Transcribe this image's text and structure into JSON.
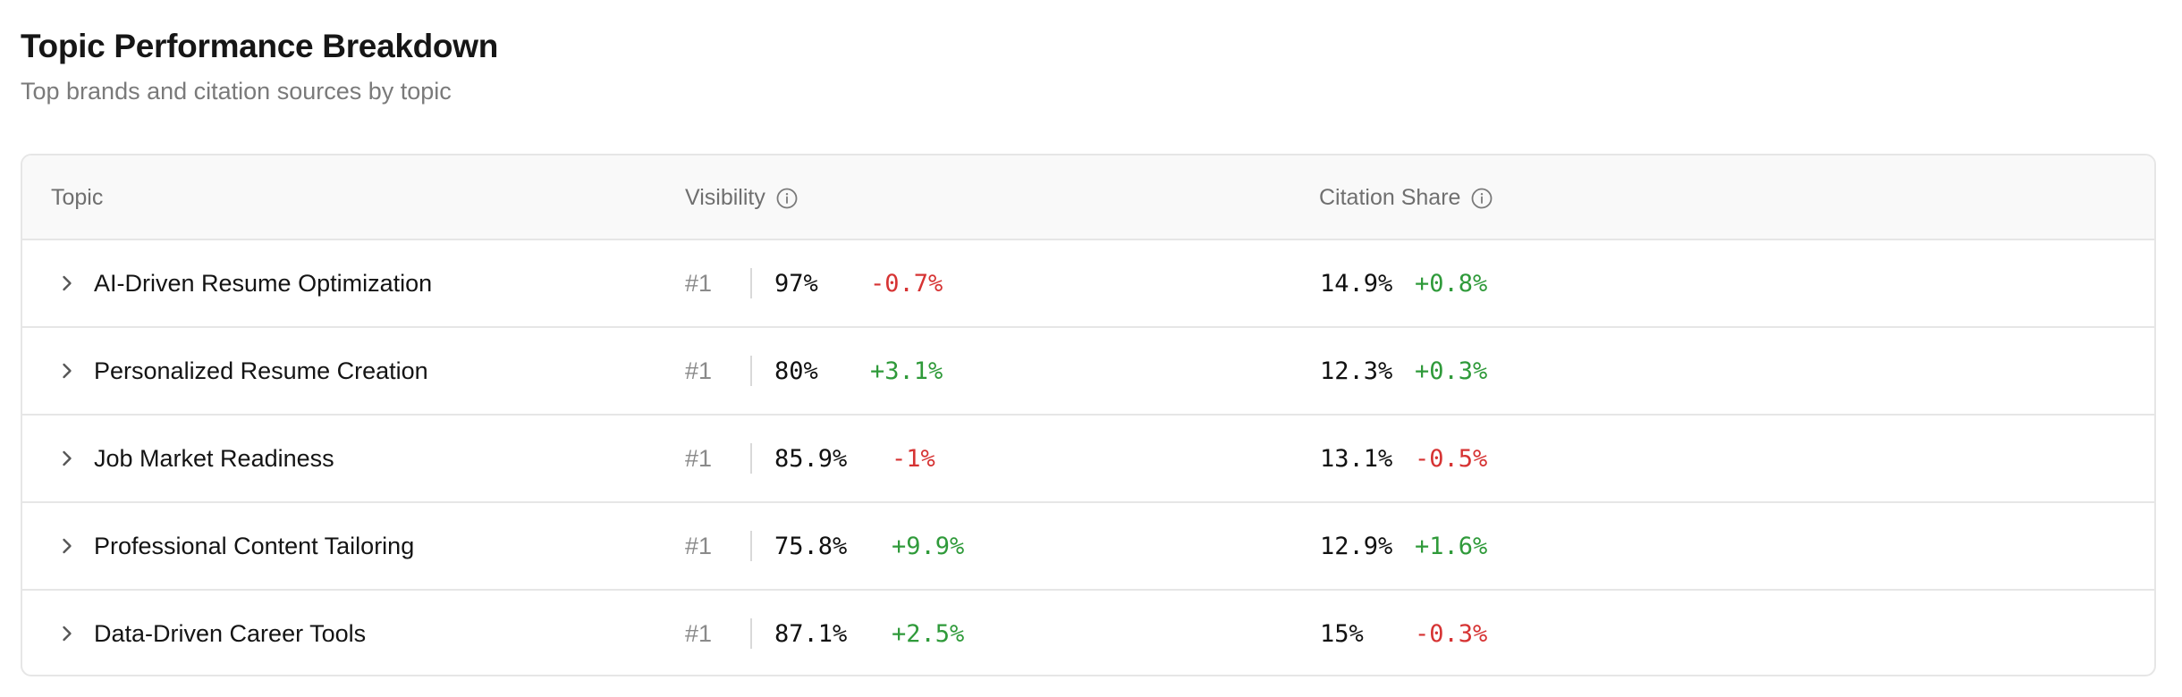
{
  "header": {
    "title": "Topic Performance Breakdown",
    "subtitle": "Top brands and citation sources by topic"
  },
  "table": {
    "columns": {
      "topic": "Topic",
      "visibility": "Visibility",
      "citation_share": "Citation Share"
    },
    "rows": [
      {
        "topic": "AI-Driven Resume Optimization",
        "rank": "#1",
        "visibility": "97%",
        "visibility_delta": "-0.7%",
        "visibility_trend": "down",
        "citation_share": "14.9%",
        "citation_delta": "+0.8%",
        "citation_trend": "up"
      },
      {
        "topic": "Personalized Resume Creation",
        "rank": "#1",
        "visibility": "80%",
        "visibility_delta": "+3.1%",
        "visibility_trend": "up",
        "citation_share": "12.3%",
        "citation_delta": "+0.3%",
        "citation_trend": "up"
      },
      {
        "topic": "Job Market Readiness",
        "rank": "#1",
        "visibility": "85.9%",
        "visibility_delta": "-1%",
        "visibility_trend": "down",
        "citation_share": "13.1%",
        "citation_delta": "-0.5%",
        "citation_trend": "down"
      },
      {
        "topic": "Professional Content Tailoring",
        "rank": "#1",
        "visibility": "75.8%",
        "visibility_delta": "+9.9%",
        "visibility_trend": "up",
        "citation_share": "12.9%",
        "citation_delta": "+1.6%",
        "citation_trend": "up"
      },
      {
        "topic": "Data-Driven Career Tools",
        "rank": "#1",
        "visibility": "87.1%",
        "visibility_delta": "+2.5%",
        "visibility_trend": "up",
        "citation_share": "15%",
        "citation_delta": "-0.3%",
        "citation_trend": "down"
      }
    ]
  },
  "icons": {
    "info": "info-circle-icon",
    "expand": "chevron-right-icon"
  },
  "colors": {
    "negative": "#d63333",
    "positive": "#2f9a3a"
  }
}
